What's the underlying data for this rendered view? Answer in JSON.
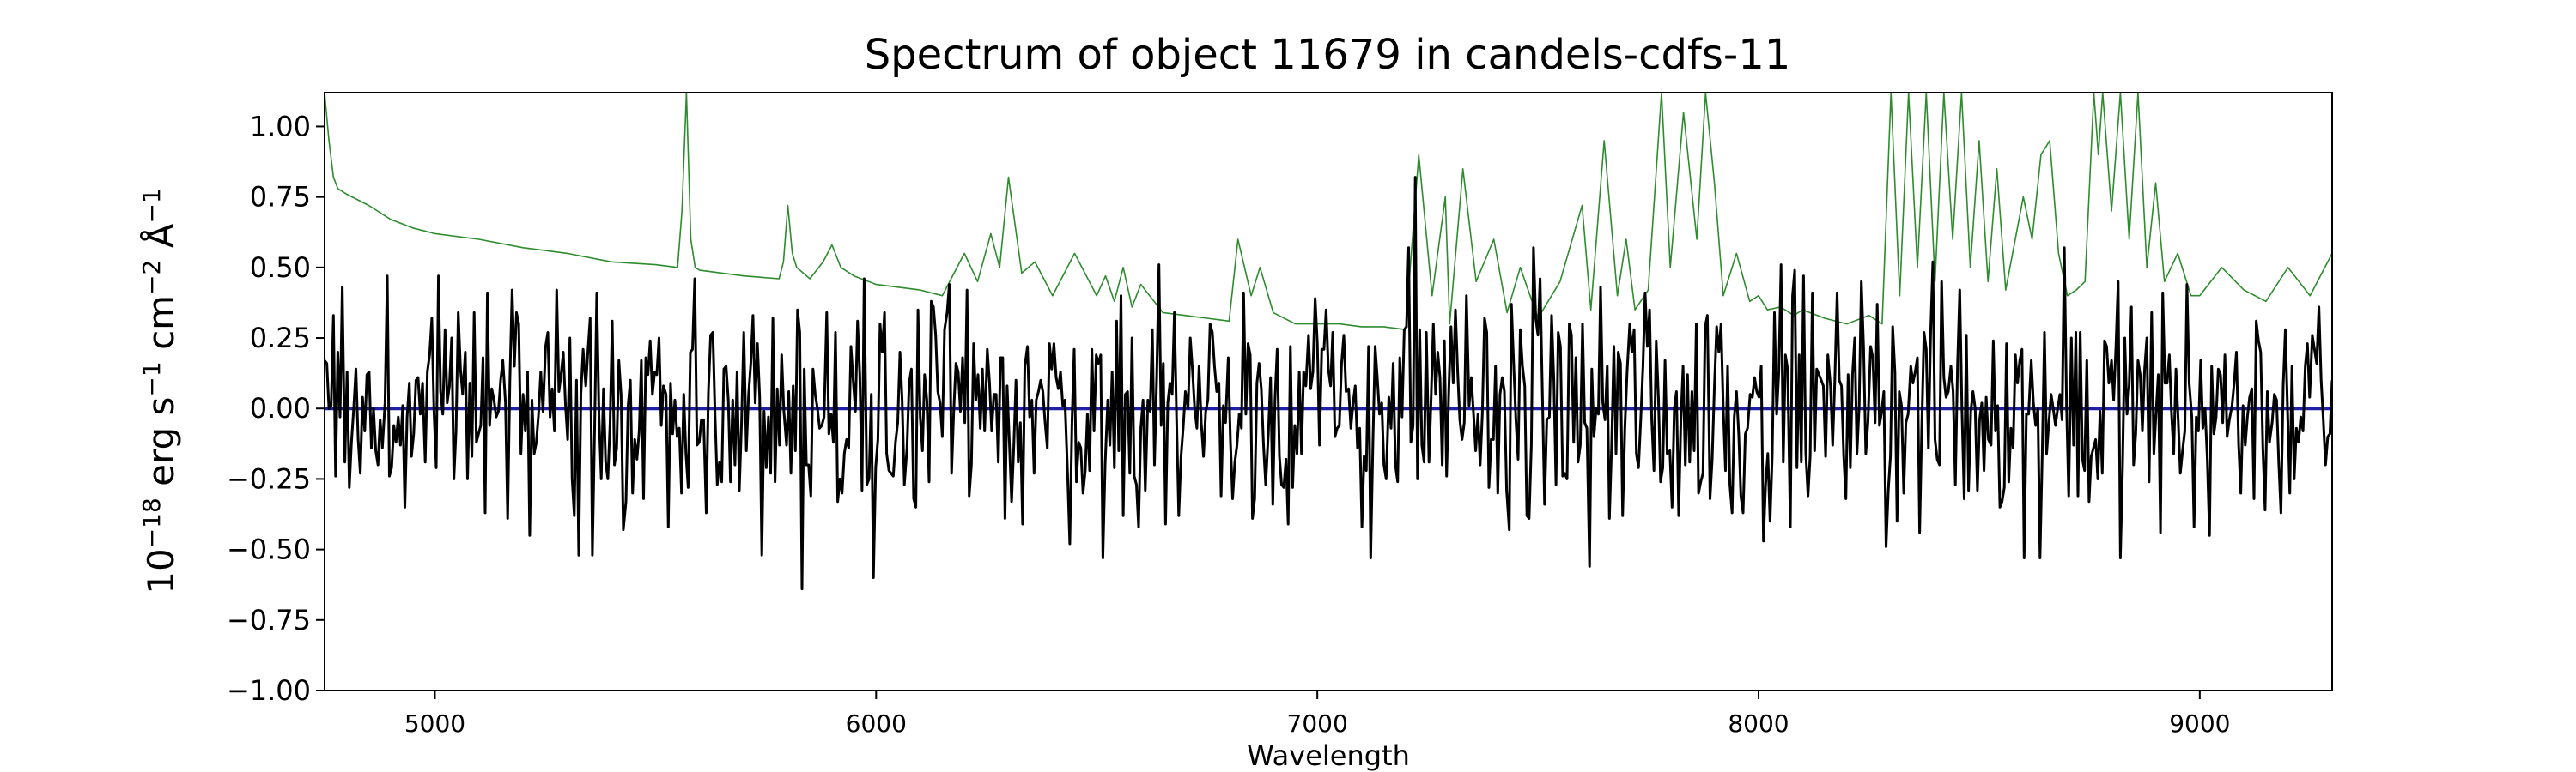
{
  "chart_data": {
    "type": "line",
    "title": "Spectrum of object 11679 in candels-cdfs-11",
    "xlabel": "Wavelength",
    "ylabel": {
      "base": "10",
      "exp": "−18",
      "part1": " erg s",
      "exp2": "−1",
      "part2": " cm",
      "exp3": "−2",
      "part3": " Å",
      "exp4": "−1"
    },
    "xlim": [
      4750,
      9300
    ],
    "ylim": [
      -1.0,
      1.12
    ],
    "xticks": [
      {
        "value": 5000,
        "label": "5000"
      },
      {
        "value": 6000,
        "label": "6000"
      },
      {
        "value": 7000,
        "label": "7000"
      },
      {
        "value": 8000,
        "label": "8000"
      },
      {
        "value": 9000,
        "label": "9000"
      }
    ],
    "yticks": [
      {
        "value": 1.0,
        "label": "1.00"
      },
      {
        "value": 0.75,
        "label": "0.75"
      },
      {
        "value": 0.5,
        "label": "0.50"
      },
      {
        "value": 0.25,
        "label": "0.25"
      },
      {
        "value": 0.0,
        "label": "0.00"
      },
      {
        "value": -0.25,
        "label": "−0.25"
      },
      {
        "value": -0.5,
        "label": "−0.50"
      },
      {
        "value": -0.75,
        "label": "−0.75"
      },
      {
        "value": -1.0,
        "label": "−1.00"
      }
    ],
    "grid": false,
    "series": [
      {
        "role": "noise",
        "color": "#2e8b2e",
        "x": [
          4750,
          4760,
          4770,
          4780,
          4800,
          4850,
          4900,
          4950,
          5000,
          5100,
          5200,
          5300,
          5400,
          5500,
          5550,
          5560,
          5570,
          5580,
          5590,
          5600,
          5700,
          5780,
          5790,
          5800,
          5810,
          5820,
          5850,
          5880,
          5900,
          5920,
          5950,
          6000,
          6100,
          6150,
          6200,
          6230,
          6260,
          6280,
          6300,
          6330,
          6360,
          6400,
          6450,
          6500,
          6520,
          6540,
          6560,
          6580,
          6600,
          6650,
          6700,
          6750,
          6800,
          6820,
          6850,
          6870,
          6900,
          6950,
          7000,
          7050,
          7100,
          7150,
          7200,
          7230,
          7260,
          7290,
          7300,
          7330,
          7360,
          7400,
          7430,
          7460,
          7500,
          7550,
          7600,
          7620,
          7650,
          7680,
          7700,
          7720,
          7750,
          7780,
          7800,
          7830,
          7860,
          7880,
          7900,
          7920,
          7950,
          7980,
          8000,
          8020,
          8050,
          8080,
          8100,
          8150,
          8200,
          8250,
          8280,
          8300,
          8320,
          8340,
          8360,
          8380,
          8400,
          8420,
          8440,
          8460,
          8480,
          8500,
          8520,
          8540,
          8560,
          8600,
          8620,
          8640,
          8660,
          8680,
          8700,
          8720,
          8740,
          8760,
          8770,
          8780,
          8800,
          8820,
          8840,
          8860,
          8880,
          8900,
          8920,
          8950,
          8980,
          9000,
          9050,
          9100,
          9150,
          9200,
          9250,
          9300
        ],
        "y": [
          1.12,
          0.95,
          0.82,
          0.78,
          0.76,
          0.72,
          0.67,
          0.64,
          0.62,
          0.6,
          0.57,
          0.55,
          0.52,
          0.51,
          0.5,
          0.7,
          1.12,
          0.6,
          0.5,
          0.49,
          0.47,
          0.46,
          0.52,
          0.72,
          0.55,
          0.5,
          0.46,
          0.52,
          0.58,
          0.5,
          0.47,
          0.44,
          0.42,
          0.4,
          0.55,
          0.45,
          0.62,
          0.5,
          0.82,
          0.48,
          0.52,
          0.4,
          0.55,
          0.4,
          0.47,
          0.38,
          0.5,
          0.36,
          0.44,
          0.34,
          0.33,
          0.32,
          0.31,
          0.6,
          0.4,
          0.5,
          0.34,
          0.3,
          0.3,
          0.3,
          0.29,
          0.29,
          0.28,
          0.9,
          0.4,
          0.75,
          0.3,
          0.85,
          0.45,
          0.6,
          0.34,
          0.5,
          0.32,
          0.45,
          0.72,
          0.35,
          0.95,
          0.4,
          0.6,
          0.35,
          0.42,
          1.12,
          0.5,
          1.05,
          0.6,
          1.12,
          0.8,
          0.4,
          0.55,
          0.38,
          0.4,
          0.35,
          0.36,
          0.33,
          0.35,
          0.32,
          0.3,
          0.33,
          0.3,
          1.12,
          0.4,
          1.12,
          0.5,
          1.12,
          0.45,
          1.12,
          0.6,
          1.12,
          0.5,
          0.95,
          0.45,
          0.85,
          0.42,
          0.75,
          0.6,
          0.9,
          0.95,
          0.55,
          0.4,
          0.42,
          0.45,
          1.12,
          0.9,
          1.12,
          0.7,
          1.12,
          0.6,
          1.12,
          0.5,
          0.8,
          0.45,
          0.55,
          0.4,
          0.4,
          0.5,
          0.42,
          0.38,
          0.5,
          0.4,
          0.55
        ]
      },
      {
        "role": "model",
        "color": "#1f1fa8",
        "x": [
          4750,
          9300
        ],
        "y": [
          0.0,
          0.0
        ]
      },
      {
        "role": "flux",
        "color": "#000000",
        "x": [],
        "y": []
      }
    ]
  }
}
